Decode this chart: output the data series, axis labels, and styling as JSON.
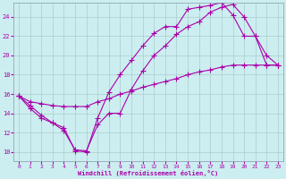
{
  "xlabel": "Windchill (Refroidissement éolien,°C)",
  "xlim": [
    -0.5,
    23.5
  ],
  "ylim": [
    9,
    25.5
  ],
  "xticks": [
    0,
    1,
    2,
    3,
    4,
    5,
    6,
    7,
    8,
    9,
    10,
    11,
    12,
    13,
    14,
    15,
    16,
    17,
    18,
    19,
    20,
    21,
    22,
    23
  ],
  "yticks": [
    10,
    12,
    14,
    16,
    18,
    20,
    22,
    24
  ],
  "bg_color": "#cceef0",
  "line_color": "#aa00aa",
  "grid_color": "#aacccc",
  "series1_x": [
    0,
    1,
    2,
    3,
    4,
    5,
    6,
    7,
    8,
    9,
    10,
    11,
    12,
    13,
    14,
    15,
    16,
    17,
    18,
    19,
    20,
    21,
    22,
    23
  ],
  "series1_y": [
    15.8,
    14.8,
    13.8,
    13.0,
    12.2,
    10.2,
    10.1,
    12.8,
    14.0,
    14.0,
    16.5,
    18.4,
    20.0,
    21.0,
    22.2,
    23.0,
    23.5,
    24.5,
    25.0,
    25.3,
    24.0,
    22.0,
    20.0,
    19.0
  ],
  "series2_x": [
    0,
    1,
    2,
    3,
    4,
    5,
    6,
    7,
    8,
    9,
    10,
    11,
    12,
    13,
    14,
    15,
    16,
    17,
    18,
    19,
    20,
    21,
    22,
    23
  ],
  "series2_y": [
    15.8,
    15.2,
    15.0,
    14.8,
    14.7,
    14.7,
    14.7,
    15.2,
    15.5,
    16.0,
    16.3,
    16.7,
    17.0,
    17.3,
    17.6,
    18.0,
    18.3,
    18.5,
    18.8,
    19.0,
    19.0,
    19.0,
    19.0,
    19.0
  ],
  "series3_x": [
    0,
    1,
    2,
    3,
    4,
    5,
    6,
    7,
    8,
    9,
    10,
    11,
    12,
    13,
    14,
    15,
    16,
    17,
    18,
    19,
    20,
    21,
    22,
    23
  ],
  "series3_y": [
    15.8,
    14.5,
    13.5,
    13.0,
    12.5,
    10.1,
    10.0,
    13.5,
    16.2,
    18.0,
    19.5,
    21.0,
    22.3,
    23.0,
    23.0,
    24.8,
    25.0,
    25.2,
    25.5,
    24.2,
    22.0,
    22.0,
    19.0,
    19.0
  ]
}
